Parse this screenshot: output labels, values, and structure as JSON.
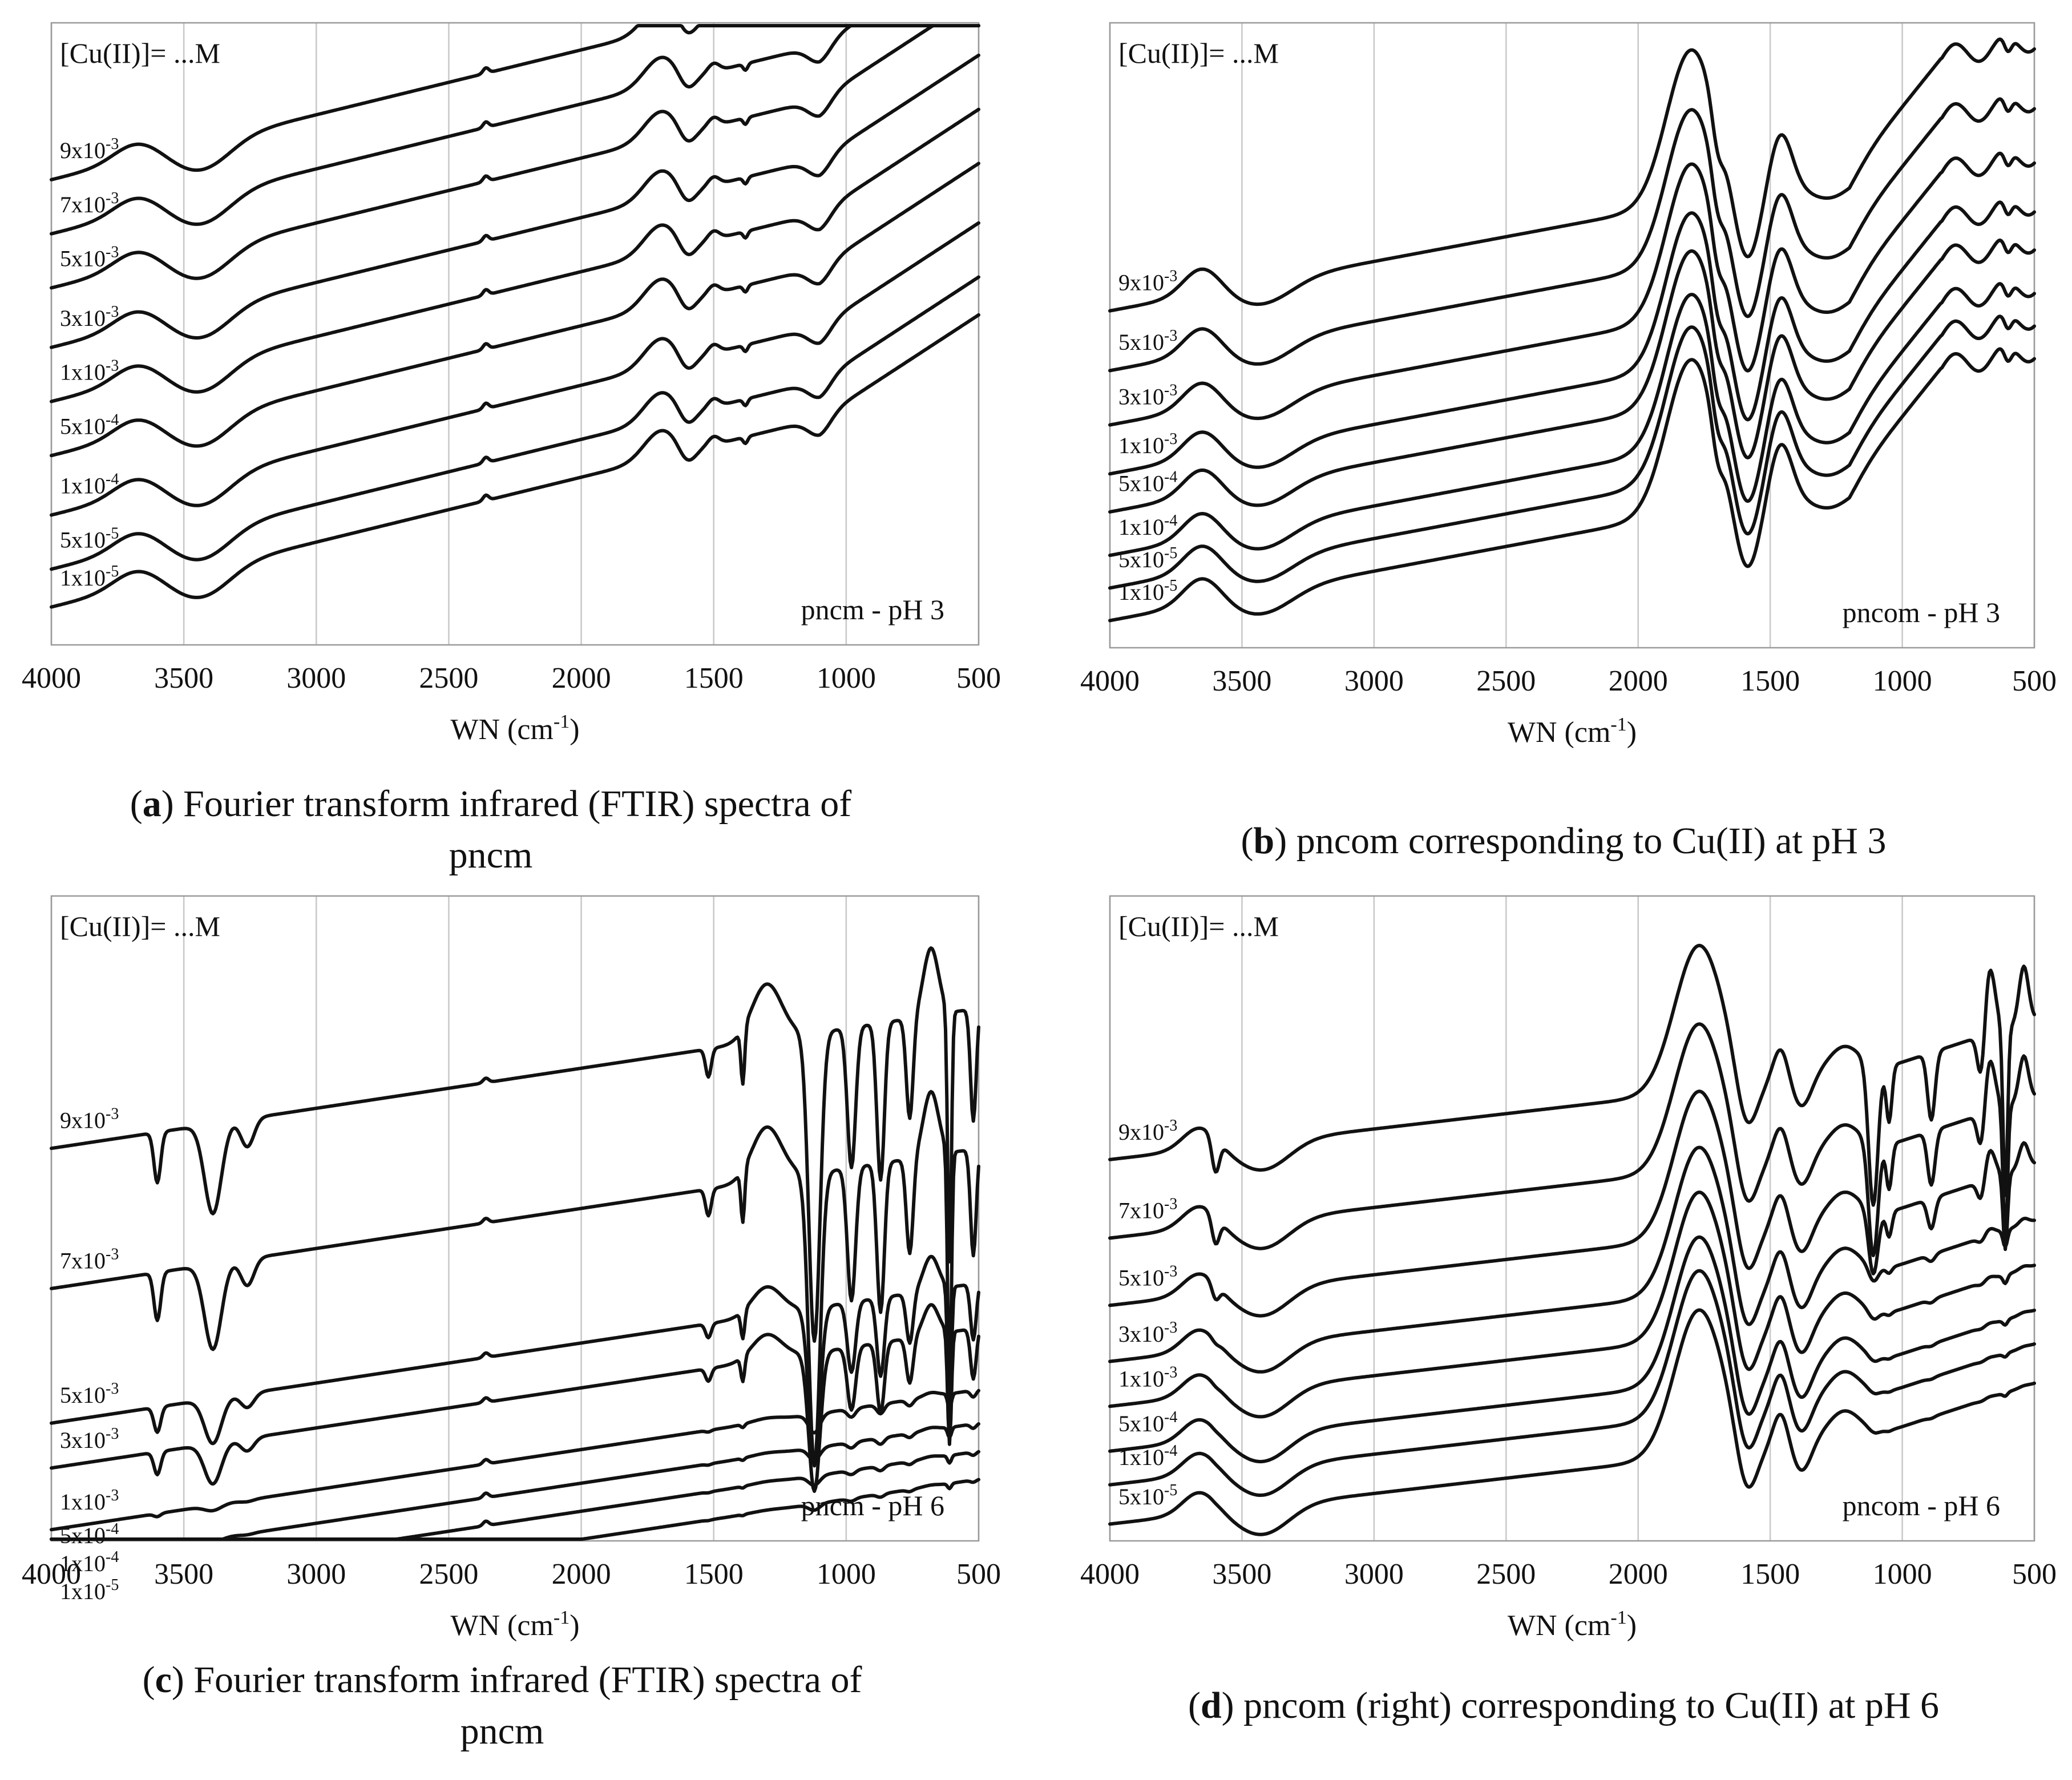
{
  "panels": [
    {
      "id": "a",
      "annotation": "[Cu(II)]= ...M",
      "tag": "pncm - pH 3",
      "xlabel": "WN (cm",
      "xlabel_sup": "-1",
      "xlabel_end": ")",
      "xticks": [
        "4000",
        "3500",
        "3000",
        "2500",
        "2000",
        "1500",
        "1000",
        "500"
      ],
      "caption_letter": "a",
      "caption_lines": [
        "Fourier transform infrared (FTIR) spectra of",
        "pncm"
      ],
      "series": [
        {
          "base": "9x10",
          "exp": "-3"
        },
        {
          "base": "7x10",
          "exp": "-3"
        },
        {
          "base": "5x10",
          "exp": "-3"
        },
        {
          "base": "3x10",
          "exp": "-3"
        },
        {
          "base": "1x10",
          "exp": "-3"
        },
        {
          "base": "5x10",
          "exp": "-4"
        },
        {
          "base": "1x10",
          "exp": "-4"
        },
        {
          "base": "5x10",
          "exp": "-5"
        },
        {
          "base": "1x10",
          "exp": "-5"
        }
      ]
    },
    {
      "id": "b",
      "annotation": "[Cu(II)]= ...M",
      "tag": "pncom - pH 3",
      "xlabel": "WN (cm",
      "xlabel_sup": "-1",
      "xlabel_end": ")",
      "xticks": [
        "4000",
        "3500",
        "3000",
        "2500",
        "2000",
        "1500",
        "1000",
        "500"
      ],
      "caption_letter": "b",
      "caption_lines": [
        "pncom corresponding to Cu(II) at pH 3"
      ],
      "series": [
        {
          "base": "9x10",
          "exp": "-3"
        },
        {
          "base": "5x10",
          "exp": "-3"
        },
        {
          "base": "3x10",
          "exp": "-3"
        },
        {
          "base": "1x10",
          "exp": "-3"
        },
        {
          "base": "5x10",
          "exp": "-4"
        },
        {
          "base": "1x10",
          "exp": "-4"
        },
        {
          "base": "5x10",
          "exp": "-5"
        },
        {
          "base": "1x10",
          "exp": "-5"
        }
      ]
    },
    {
      "id": "c",
      "annotation": "[Cu(II)]= ...M",
      "tag": "pncm - pH 6",
      "xlabel": "WN (cm",
      "xlabel_sup": "-1",
      "xlabel_end": ")",
      "xticks": [
        "4000",
        "3500",
        "3000",
        "2500",
        "2000",
        "1500",
        "1000",
        "500"
      ],
      "caption_letter": "c",
      "caption_lines": [
        "Fourier transform infrared (FTIR) spectra of",
        "pncm"
      ],
      "series": [
        {
          "base": "9x10",
          "exp": "-3"
        },
        {
          "base": "7x10",
          "exp": "-3"
        },
        {
          "base": "5x10",
          "exp": "-3"
        },
        {
          "base": "3x10",
          "exp": "-3"
        },
        {
          "base": "1x10",
          "exp": "-3"
        },
        {
          "base": "5x10",
          "exp": "-4"
        },
        {
          "base": "1x10",
          "exp": "-4"
        },
        {
          "base": "1x10",
          "exp": "-5"
        }
      ]
    },
    {
      "id": "d",
      "annotation": "[Cu(II)]= ...M",
      "tag": "pncom - pH 6",
      "xlabel": "WN (cm",
      "xlabel_sup": "-1",
      "xlabel_end": ")",
      "xticks": [
        "4000",
        "3500",
        "3000",
        "2500",
        "2000",
        "1500",
        "1000",
        "500"
      ],
      "caption_letter": "d",
      "caption_lines": [
        "pncom (right) corresponding to Cu(II) at pH 6"
      ],
      "series": [
        {
          "base": "9x10",
          "exp": "-3"
        },
        {
          "base": "7x10",
          "exp": "-3"
        },
        {
          "base": "5x10",
          "exp": "-3"
        },
        {
          "base": "3x10",
          "exp": "-3"
        },
        {
          "base": "1x10",
          "exp": "-3"
        },
        {
          "base": "5x10",
          "exp": "-4"
        },
        {
          "base": "1x10",
          "exp": "-4"
        },
        {
          "base": "5x10",
          "exp": "-5"
        }
      ]
    }
  ],
  "chart_data": [
    {
      "type": "line",
      "panel": "a",
      "title": "",
      "xlabel": "WN (cm-1)",
      "ylabel": "",
      "xlim": [
        4000,
        500
      ],
      "x_reversed": true,
      "y_axis": "stacked transmittance, offset (arbitrary)",
      "style": "gentle",
      "offsets": [
        0.66,
        0.56,
        0.46,
        0.35,
        0.25,
        0.15,
        0.04,
        -0.06,
        -0.13
      ],
      "series_names": [
        "9x10^-3",
        "7x10^-3",
        "5x10^-3",
        "3x10^-3",
        "1x10^-3",
        "5x10^-4",
        "1x10^-4",
        "5x10^-5",
        "1x10^-5"
      ]
    },
    {
      "type": "line",
      "panel": "b",
      "title": "",
      "xlabel": "WN (cm-1)",
      "ylabel": "",
      "xlim": [
        4000,
        500
      ],
      "x_reversed": true,
      "y_axis": "stacked transmittance, offset (arbitrary)",
      "style": "pncom3",
      "offsets": [
        0.42,
        0.31,
        0.21,
        0.12,
        0.05,
        -0.03,
        -0.09,
        -0.15
      ],
      "series_names": [
        "9x10^-3",
        "5x10^-3",
        "3x10^-3",
        "1x10^-3",
        "5x10^-4",
        "1x10^-4",
        "5x10^-5",
        "1x10^-5"
      ]
    },
    {
      "type": "line",
      "panel": "c",
      "title": "",
      "xlabel": "WN (cm-1)",
      "ylabel": "",
      "xlim": [
        4000,
        500
      ],
      "x_reversed": true,
      "y_axis": "stacked transmittance, offset (arbitrary)",
      "style": "pncm6",
      "strengths": [
        1.0,
        0.95,
        0.5,
        0.45,
        0.06,
        0.04,
        0.03,
        0.02
      ],
      "offsets": [
        0.5,
        0.25,
        0.01,
        -0.07,
        -0.18,
        -0.24,
        -0.29,
        -0.34
      ],
      "series_names": [
        "9x10^-3",
        "7x10^-3",
        "5x10^-3",
        "3x10^-3",
        "1x10^-3",
        "5x10^-4",
        "1x10^-4",
        "1x10^-5"
      ]
    },
    {
      "type": "line",
      "panel": "d",
      "title": "",
      "xlabel": "WN (cm-1)",
      "ylabel": "",
      "xlim": [
        4000,
        500
      ],
      "x_reversed": true,
      "y_axis": "stacked transmittance, offset (arbitrary)",
      "style": "pncom6",
      "strengths": [
        1.0,
        0.8,
        0.45,
        0.1,
        0.05,
        0.03,
        0.02,
        0.02
      ],
      "offsets": [
        0.48,
        0.34,
        0.22,
        0.12,
        0.04,
        -0.04,
        -0.1,
        -0.17
      ],
      "series_names": [
        "9x10^-3",
        "7x10^-3",
        "5x10^-3",
        "3x10^-3",
        "1x10^-3",
        "5x10^-4",
        "1x10^-4",
        "5x10^-5"
      ]
    }
  ]
}
